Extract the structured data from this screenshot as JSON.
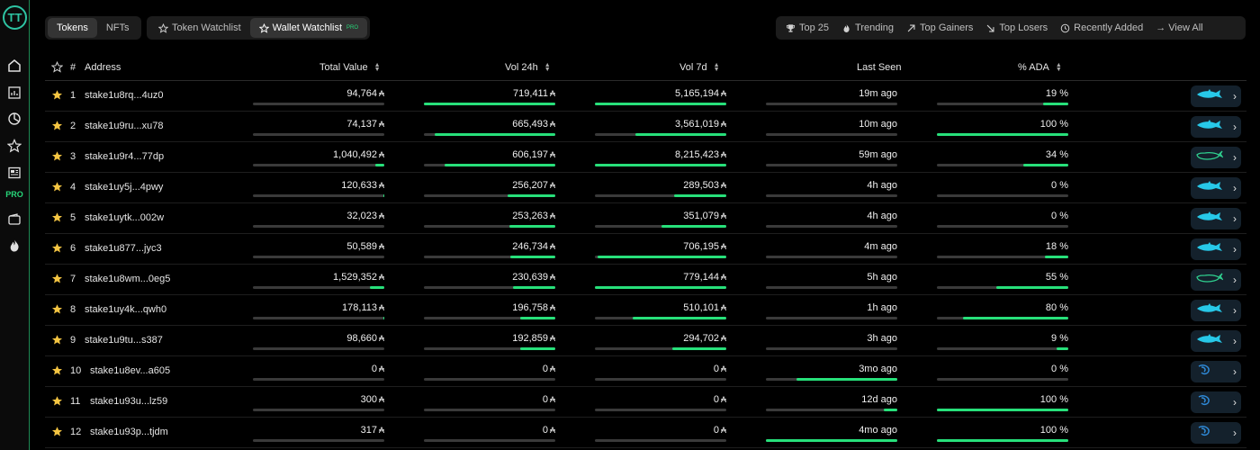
{
  "app": {
    "logo_text": "TT"
  },
  "sidebar": {
    "pro_label": "PRO"
  },
  "tabs": {
    "tokens": "Tokens",
    "nfts": "NFTs"
  },
  "watchlist": {
    "token": "Token Watchlist",
    "wallet": "Wallet Watchlist",
    "wallet_badge": "PRO"
  },
  "filters": {
    "top25": "Top 25",
    "trending": "Trending",
    "gainers": "Top Gainers",
    "losers": "Top Losers",
    "recent": "Recently Added",
    "view_all": "→ View All"
  },
  "table": {
    "headers": {
      "num": "#",
      "address": "Address",
      "total_value": "Total Value",
      "vol24": "Vol 24h",
      "vol7": "Vol 7d",
      "last_seen": "Last Seen",
      "ada": "% ADA"
    },
    "currency_symbol": "₳",
    "rows": [
      {
        "n": "1",
        "address": "stake1u8rq...4uz0",
        "total": "94,764",
        "vol24": "719,411",
        "vol7": "5,165,194",
        "seen": "19m ago",
        "ada": "19 %",
        "b": [
          0.0,
          1.0,
          1.0,
          0.0,
          0.19
        ],
        "fish": "shark"
      },
      {
        "n": "2",
        "address": "stake1u9ru...xu78",
        "total": "74,137",
        "vol24": "665,493",
        "vol7": "3,561,019",
        "seen": "10m ago",
        "ada": "100 %",
        "b": [
          0.0,
          0.92,
          0.69,
          0.0,
          1.0
        ],
        "fish": "shark"
      },
      {
        "n": "3",
        "address": "stake1u9r4...77dp",
        "total": "1,040,492",
        "vol24": "606,197",
        "vol7": "8,215,423",
        "seen": "59m ago",
        "ada": "34 %",
        "b": [
          0.07,
          0.84,
          1.0,
          0.0,
          0.34
        ],
        "fish": "whale"
      },
      {
        "n": "4",
        "address": "stake1uy5j...4pwy",
        "total": "120,633",
        "vol24": "256,207",
        "vol7": "289,503",
        "seen": "4h ago",
        "ada": "0 %",
        "b": [
          0.01,
          0.36,
          0.4,
          0.0,
          0.0
        ],
        "fish": "shark"
      },
      {
        "n": "5",
        "address": "stake1uytk...002w",
        "total": "32,023",
        "vol24": "253,263",
        "vol7": "351,079",
        "seen": "4h ago",
        "ada": "0 %",
        "b": [
          0.0,
          0.35,
          0.49,
          0.0,
          0.0
        ],
        "fish": "shark"
      },
      {
        "n": "6",
        "address": "stake1u877...jyc3",
        "total": "50,589",
        "vol24": "246,734",
        "vol7": "706,195",
        "seen": "4m ago",
        "ada": "18 %",
        "b": [
          0.0,
          0.34,
          0.98,
          0.0,
          0.18
        ],
        "fish": "shark"
      },
      {
        "n": "7",
        "address": "stake1u8wm...0eg5",
        "total": "1,529,352",
        "vol24": "230,639",
        "vol7": "779,144",
        "seen": "5h ago",
        "ada": "55 %",
        "b": [
          0.11,
          0.32,
          1.0,
          0.0,
          0.55
        ],
        "fish": "whale"
      },
      {
        "n": "8",
        "address": "stake1uy4k...qwh0",
        "total": "178,113",
        "vol24": "196,758",
        "vol7": "510,101",
        "seen": "1h ago",
        "ada": "80 %",
        "b": [
          0.01,
          0.27,
          0.71,
          0.0,
          0.8
        ],
        "fish": "shark"
      },
      {
        "n": "9",
        "address": "stake1u9tu...s387",
        "total": "98,660",
        "vol24": "192,859",
        "vol7": "294,702",
        "seen": "3h ago",
        "ada": "9 %",
        "b": [
          0.0,
          0.27,
          0.41,
          0.0,
          0.09
        ],
        "fish": "shark"
      },
      {
        "n": "10",
        "address": "stake1u8ev...a605",
        "total": "0",
        "vol24": "0",
        "vol7": "0",
        "seen": "3mo ago",
        "ada": "0 %",
        "b": [
          0.0,
          0.0,
          0.0,
          0.77,
          0.0
        ],
        "fish": "shrimp"
      },
      {
        "n": "11",
        "address": "stake1u93u...lz59",
        "total": "300",
        "vol24": "0",
        "vol7": "0",
        "seen": "12d ago",
        "ada": "100 %",
        "b": [
          0.0,
          0.0,
          0.0,
          0.1,
          1.0
        ],
        "fish": "shrimp"
      },
      {
        "n": "12",
        "address": "stake1u93p...tjdm",
        "total": "317",
        "vol24": "0",
        "vol7": "0",
        "seen": "4mo ago",
        "ada": "100 %",
        "b": [
          0.0,
          0.0,
          0.0,
          1.0,
          1.0
        ],
        "fish": "shrimp"
      }
    ]
  },
  "colors": {
    "accent": "#27e07a",
    "shark": "#27c8e8",
    "whale": "#2fd08f",
    "shrimp": "#2f8ad8"
  }
}
